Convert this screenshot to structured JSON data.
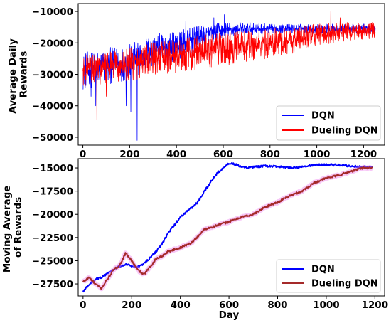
{
  "colors": {
    "dqn": "#0000ff",
    "dueling_top": "#ff0000",
    "dueling_bottom": "#a52a2a",
    "dueling_band": "#ee82ee"
  },
  "chart_data": [
    {
      "type": "line",
      "ylabel": "Average Daily Rewards",
      "xlabel": "",
      "xlim": [
        -20,
        1290
      ],
      "ylim": [
        -52500,
        -7500
      ],
      "xticks": [
        0,
        200,
        400,
        600,
        800,
        1000,
        1200
      ],
      "xtick_labels": [
        "0",
        "200",
        "400",
        "600",
        "800",
        "1000",
        "1200"
      ],
      "yticks": [
        -10000,
        -20000,
        -30000,
        -40000,
        -50000
      ],
      "ytick_labels": [
        "−10000",
        "−20000",
        "−30000",
        "−40000",
        "−50000"
      ],
      "legend": {
        "position": "lower right"
      },
      "series": [
        {
          "name": "DQN",
          "color_key": "dqn",
          "x_range": [
            0,
            1250
          ],
          "mean_curve": [
            [
              0,
              -29000
            ],
            [
              100,
              -27500
            ],
            [
              200,
              -26000
            ],
            [
              300,
              -22500
            ],
            [
              400,
              -21000
            ],
            [
              500,
              -18500
            ],
            [
              600,
              -16000
            ],
            [
              700,
              -15500
            ],
            [
              800,
              -15500
            ],
            [
              900,
              -15500
            ],
            [
              1000,
              -15500
            ],
            [
              1100,
              -15500
            ],
            [
              1250,
              -15500
            ]
          ],
          "noise_amplitude": [
            [
              0,
              6000
            ],
            [
              300,
              5500
            ],
            [
              500,
              4000
            ],
            [
              600,
              2500
            ],
            [
              800,
              1500
            ],
            [
              1250,
              1500
            ]
          ],
          "notable_points": [
            [
              35,
              -37000
            ],
            [
              55,
              -40000
            ],
            [
              185,
              -40000
            ],
            [
              205,
              -42000
            ],
            [
              232,
              -51000
            ],
            [
              440,
              -13000
            ],
            [
              560,
              -12000
            ],
            [
              605,
              -11000
            ]
          ]
        },
        {
          "name": "Dueling DQN",
          "color_key": "dueling_top",
          "x_range": [
            0,
            1250
          ],
          "mean_curve": [
            [
              0,
              -29000
            ],
            [
              100,
              -28000
            ],
            [
              200,
              -27000
            ],
            [
              300,
              -25000
            ],
            [
              400,
              -24000
            ],
            [
              500,
              -23000
            ],
            [
              600,
              -22000
            ],
            [
              700,
              -21000
            ],
            [
              800,
              -20000
            ],
            [
              900,
              -19000
            ],
            [
              1000,
              -17500
            ],
            [
              1100,
              -16500
            ],
            [
              1250,
              -16000
            ]
          ],
          "noise_amplitude": [
            [
              0,
              5000
            ],
            [
              400,
              5500
            ],
            [
              800,
              5000
            ],
            [
              1000,
              3500
            ],
            [
              1250,
              2500
            ]
          ],
          "notable_points": [
            [
              60,
              -44500
            ],
            [
              100,
              -37000
            ],
            [
              1060,
              -10000
            ],
            [
              1100,
              -12000
            ]
          ]
        }
      ]
    },
    {
      "type": "line",
      "ylabel": "Moving Average of Rewards",
      "xlabel": "Day",
      "xlim": [
        -20,
        1240
      ],
      "ylim": [
        -28800,
        -14000
      ],
      "xticks": [
        0,
        200,
        400,
        600,
        800,
        1000,
        1200
      ],
      "xtick_labels": [
        "0",
        "200",
        "400",
        "600",
        "800",
        "1000",
        "1200"
      ],
      "yticks": [
        -15000,
        -17500,
        -20000,
        -22500,
        -25000,
        -27500
      ],
      "ytick_labels": [
        "−15000",
        "−17500",
        "−20000",
        "−22500",
        "−25000",
        "−27500"
      ],
      "legend": {
        "position": "lower right"
      },
      "series": [
        {
          "name": "DQN",
          "color_key": "dqn",
          "points": [
            [
              0,
              -28300
            ],
            [
              25,
              -27600
            ],
            [
              50,
              -27000
            ],
            [
              75,
              -26800
            ],
            [
              100,
              -26400
            ],
            [
              125,
              -26000
            ],
            [
              150,
              -25600
            ],
            [
              175,
              -25400
            ],
            [
              200,
              -25600
            ],
            [
              225,
              -25700
            ],
            [
              250,
              -25300
            ],
            [
              275,
              -24700
            ],
            [
              300,
              -24000
            ],
            [
              325,
              -23200
            ],
            [
              350,
              -22000
            ],
            [
              375,
              -21200
            ],
            [
              400,
              -20300
            ],
            [
              425,
              -19700
            ],
            [
              450,
              -19200
            ],
            [
              475,
              -18600
            ],
            [
              500,
              -17500
            ],
            [
              525,
              -16500
            ],
            [
              550,
              -15600
            ],
            [
              575,
              -15000
            ],
            [
              600,
              -14500
            ],
            [
              625,
              -14600
            ],
            [
              650,
              -14900
            ],
            [
              675,
              -15000
            ],
            [
              700,
              -14900
            ],
            [
              750,
              -14800
            ],
            [
              800,
              -14850
            ],
            [
              850,
              -15000
            ],
            [
              900,
              -14900
            ],
            [
              950,
              -14700
            ],
            [
              1000,
              -14650
            ],
            [
              1050,
              -14700
            ],
            [
              1100,
              -14800
            ],
            [
              1150,
              -14900
            ],
            [
              1190,
              -14900
            ]
          ]
        },
        {
          "name": "Dueling DQN",
          "color_key": "dueling_bottom",
          "points": [
            [
              0,
              -27300
            ],
            [
              25,
              -26800
            ],
            [
              50,
              -27500
            ],
            [
              75,
              -28000
            ],
            [
              100,
              -27000
            ],
            [
              125,
              -26000
            ],
            [
              150,
              -25500
            ],
            [
              175,
              -24200
            ],
            [
              200,
              -25000
            ],
            [
              225,
              -26000
            ],
            [
              250,
              -26500
            ],
            [
              275,
              -25700
            ],
            [
              300,
              -24800
            ],
            [
              325,
              -24500
            ],
            [
              350,
              -24000
            ],
            [
              400,
              -23600
            ],
            [
              450,
              -23000
            ],
            [
              500,
              -21600
            ],
            [
              550,
              -21200
            ],
            [
              600,
              -20800
            ],
            [
              650,
              -20300
            ],
            [
              700,
              -20000
            ],
            [
              750,
              -19200
            ],
            [
              800,
              -18700
            ],
            [
              850,
              -18000
            ],
            [
              900,
              -17500
            ],
            [
              950,
              -16600
            ],
            [
              1000,
              -16100
            ],
            [
              1050,
              -15800
            ],
            [
              1100,
              -15400
            ],
            [
              1150,
              -15000
            ],
            [
              1190,
              -15000
            ]
          ]
        }
      ]
    }
  ]
}
